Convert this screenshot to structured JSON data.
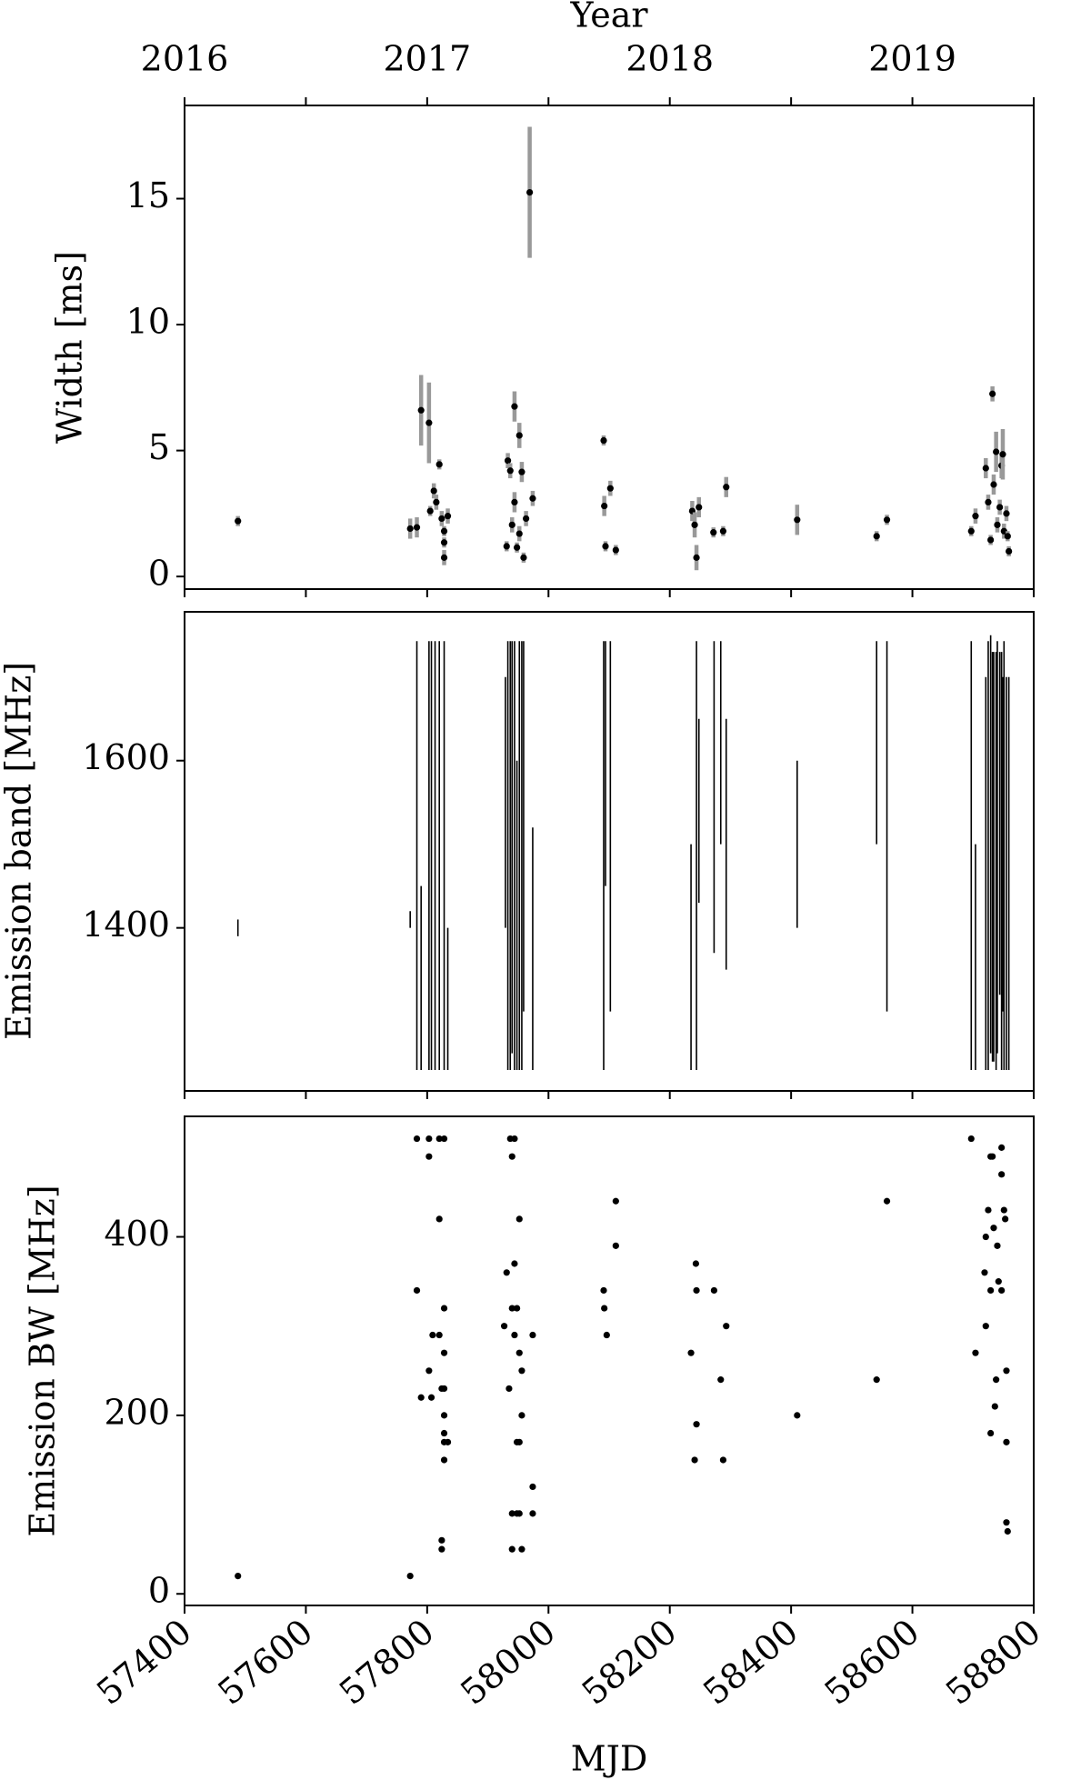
{
  "chart_data": [
    {
      "type": "errorbar",
      "ylabel": "Width [ms]",
      "x2label": "Year",
      "x2ticks": [
        {
          "value": 57400,
          "label": "2016"
        },
        {
          "value": 57800,
          "label": "2017"
        },
        {
          "value": 58200,
          "label": "2018"
        },
        {
          "value": 58600,
          "label": "2019"
        }
      ],
      "xlim": [
        57400,
        58800
      ],
      "ylim": [
        -0.5,
        18.7
      ],
      "yticks": [
        0,
        5,
        10,
        15
      ],
      "color": "#000000",
      "error_color": "#999999",
      "x": [
        57488,
        57772,
        57783,
        57790,
        57803,
        57805,
        57811,
        57815,
        57820,
        57824,
        57828,
        57828,
        57828,
        57834,
        57931,
        57933,
        57937,
        57940,
        57944,
        57944,
        57948,
        57952,
        57952,
        57956,
        57959,
        57963,
        57969,
        57974,
        58091,
        58092,
        58094,
        58102,
        58111,
        58237,
        58241,
        58244,
        58248,
        58272,
        58288,
        58293,
        58410,
        58541,
        58558,
        58697,
        58704,
        58721,
        58725,
        58729,
        58732,
        58734,
        58738,
        58740,
        58744,
        58747,
        58749,
        58751,
        58755,
        58757,
        58759
      ],
      "values": [
        2.2,
        1.9,
        1.95,
        6.6,
        6.1,
        2.6,
        3.4,
        2.95,
        4.45,
        2.3,
        1.8,
        1.35,
        0.75,
        2.4,
        1.2,
        4.6,
        4.2,
        2.05,
        6.75,
        2.95,
        1.15,
        5.6,
        1.7,
        4.15,
        0.75,
        2.3,
        15.25,
        3.1,
        5.4,
        2.8,
        1.2,
        3.5,
        1.05,
        2.6,
        2.05,
        0.75,
        2.75,
        1.75,
        1.8,
        3.55,
        2.25,
        1.6,
        2.25,
        1.8,
        2.4,
        4.3,
        2.95,
        1.45,
        7.25,
        3.65,
        4.95,
        2.05,
        2.75,
        4.4,
        4.85,
        1.8,
        2.5,
        1.6,
        1.0
      ],
      "errors": [
        0.2,
        0.4,
        0.4,
        1.4,
        1.6,
        0.2,
        0.3,
        0.3,
        0.2,
        0.3,
        0.2,
        0.2,
        0.3,
        0.3,
        0.2,
        0.3,
        0.3,
        0.3,
        0.6,
        0.4,
        0.2,
        0.5,
        0.3,
        0.4,
        0.2,
        0.3,
        2.6,
        0.3,
        0.2,
        0.4,
        0.2,
        0.3,
        0.2,
        0.4,
        0.5,
        0.5,
        0.4,
        0.2,
        0.2,
        0.4,
        0.6,
        0.2,
        0.2,
        0.2,
        0.3,
        0.4,
        0.3,
        0.2,
        0.3,
        0.4,
        0.8,
        0.3,
        0.3,
        0.5,
        1.0,
        0.3,
        0.3,
        0.2,
        0.2
      ]
    },
    {
      "type": "vlines",
      "ylabel": "Emission band [MHz]",
      "xlim": [
        57400,
        58800
      ],
      "ylim": [
        1205,
        1778
      ],
      "yticks": [
        1400,
        1600
      ],
      "color": "#000000",
      "x": [
        57488,
        57772,
        57783,
        57790,
        57803,
        57807,
        57813,
        57820,
        57828,
        57834,
        57929,
        57933,
        57937,
        57940,
        57944,
        57948,
        57952,
        57956,
        57959,
        57974,
        58091,
        58094,
        58102,
        58235,
        58244,
        58248,
        58273,
        58284,
        58293,
        58410,
        58541,
        58558,
        58697,
        58704,
        58721,
        58725,
        58729,
        58732,
        58734,
        58738,
        58740,
        58744,
        58747,
        58749,
        58751,
        58755,
        58759
      ],
      "low": [
        1390,
        1400,
        1230,
        1230,
        1230,
        1230,
        1230,
        1230,
        1230,
        1230,
        1400,
        1230,
        1230,
        1250,
        1230,
        1230,
        1230,
        1230,
        1300,
        1230,
        1230,
        1450,
        1300,
        1230,
        1230,
        1430,
        1370,
        1500,
        1350,
        1400,
        1500,
        1300,
        1230,
        1230,
        1230,
        1230,
        1250,
        1240,
        1240,
        1230,
        1250,
        1320,
        1230,
        1300,
        1230,
        1230,
        1230
      ],
      "high": [
        1410,
        1420,
        1743,
        1450,
        1743,
        1743,
        1743,
        1743,
        1743,
        1400,
        1700,
        1743,
        1743,
        1743,
        1743,
        1600,
        1743,
        1743,
        1743,
        1520,
        1743,
        1743,
        1743,
        1500,
        1743,
        1650,
        1743,
        1743,
        1650,
        1600,
        1743,
        1743,
        1743,
        1500,
        1700,
        1743,
        1750,
        1730,
        1730,
        1730,
        1743,
        1730,
        1730,
        1700,
        1743,
        1700,
        1700
      ]
    },
    {
      "type": "scatter",
      "ylabel": "Emission BW [MHz]",
      "xlabel": "MJD",
      "xlim": [
        57400,
        58800
      ],
      "xticks": [
        57400,
        57600,
        57800,
        58000,
        58200,
        58400,
        58600,
        58800
      ],
      "ylim": [
        -13,
        535
      ],
      "yticks": [
        0,
        200,
        400
      ],
      "color": "#000000",
      "x": [
        57488,
        57772,
        57783,
        57783,
        57790,
        57803,
        57803,
        57803,
        57807,
        57809,
        57820,
        57820,
        57820,
        57824,
        57824,
        57824,
        57828,
        57828,
        57828,
        57828,
        57828,
        57828,
        57828,
        57828,
        57834,
        57927,
        57931,
        57935,
        57937,
        57940,
        57944,
        57940,
        57948,
        57952,
        57940,
        57956,
        57944,
        57952,
        57940,
        57948,
        57944,
        57952,
        57956,
        57948,
        57952,
        57956,
        57974,
        57974,
        57974,
        58091,
        58092,
        58096,
        58111,
        58111,
        58235,
        58241,
        58243,
        58244,
        58244,
        58273,
        58284,
        58288,
        58293,
        58410,
        58541,
        58558,
        58697,
        58704,
        58719,
        58721,
        58725,
        58729,
        58732,
        58734,
        58736,
        58738,
        58740,
        58742,
        58747,
        58747,
        58747,
        58751,
        58753,
        58755,
        58755,
        58755,
        58757,
        58721,
        58729,
        58729
      ],
      "values": [
        20,
        20,
        510,
        340,
        220,
        510,
        490,
        250,
        220,
        290,
        510,
        420,
        290,
        230,
        60,
        50,
        510,
        320,
        270,
        200,
        180,
        170,
        150,
        230,
        170,
        300,
        360,
        230,
        510,
        490,
        510,
        90,
        90,
        90,
        50,
        50,
        370,
        420,
        320,
        320,
        290,
        270,
        250,
        170,
        170,
        200,
        120,
        90,
        290,
        340,
        320,
        290,
        440,
        390,
        270,
        150,
        370,
        340,
        190,
        340,
        240,
        150,
        300,
        200,
        240,
        440,
        510,
        270,
        360,
        400,
        430,
        490,
        490,
        410,
        210,
        240,
        390,
        350,
        500,
        470,
        340,
        430,
        420,
        250,
        170,
        80,
        70,
        300,
        180,
        340
      ]
    }
  ]
}
